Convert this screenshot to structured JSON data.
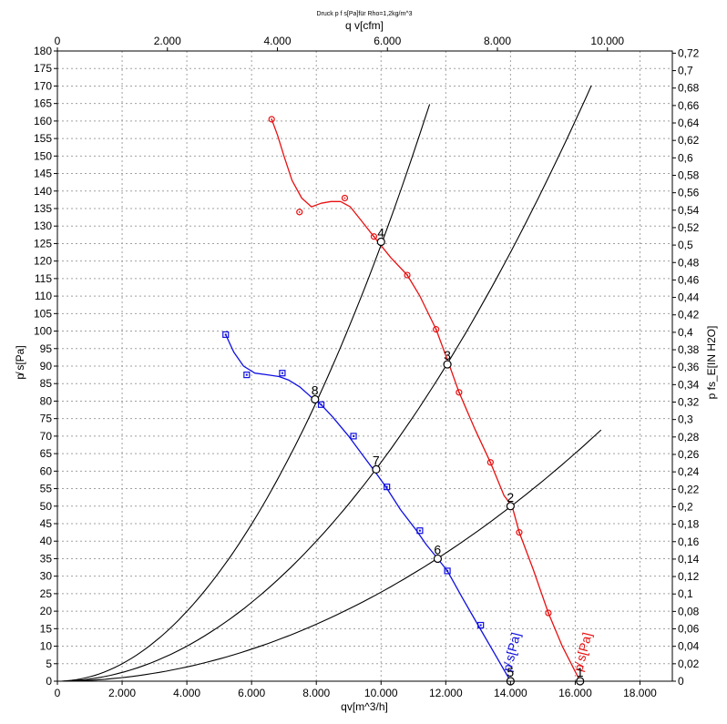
{
  "chart_data": {
    "type": "line",
    "title": "Druck p f s[Pa]für Rho=1,2kg/m^3",
    "xlabel": "qv[m^3/h]",
    "x2label": "q v[cfm]",
    "ylabel": "p̸ s[Pa]",
    "y2label": "p fs_E[IN H2O]",
    "xlim": [
      0,
      19000
    ],
    "ylim": [
      0,
      180
    ],
    "x2lim": [
      0,
      11180
    ],
    "y2lim": [
      0,
      0.7225
    ],
    "grid": true,
    "x_ticks": [
      0,
      2000,
      4000,
      6000,
      8000,
      10000,
      12000,
      14000,
      16000,
      18000
    ],
    "x_tick_labels": [
      "0",
      "2.000",
      "4.000",
      "6.000",
      "8.000",
      "10.000",
      "12.000",
      "14.000",
      "16.000",
      "18.000"
    ],
    "x2_ticks": [
      0,
      2000,
      4000,
      6000,
      8000,
      10000
    ],
    "x2_tick_labels": [
      "0",
      "2.000",
      "4.000",
      "6.000",
      "8.000",
      "10.000"
    ],
    "y_ticks": [
      0,
      5,
      10,
      15,
      20,
      25,
      30,
      35,
      40,
      45,
      50,
      55,
      60,
      65,
      70,
      75,
      80,
      85,
      90,
      95,
      100,
      105,
      110,
      115,
      120,
      125,
      130,
      135,
      140,
      145,
      150,
      155,
      160,
      165,
      170,
      175,
      180
    ],
    "y2_ticks": [
      0,
      0.02,
      0.04,
      0.06,
      0.08,
      0.1,
      0.12,
      0.14,
      0.16,
      0.18,
      0.2,
      0.22,
      0.24,
      0.26,
      0.28,
      0.3,
      0.32,
      0.34,
      0.36,
      0.38,
      0.4,
      0.42,
      0.44,
      0.46,
      0.48,
      0.5,
      0.52,
      0.54,
      0.56,
      0.58,
      0.6,
      0.62,
      0.64,
      0.66,
      0.68,
      0.7,
      0.72
    ],
    "y2_tick_labels": [
      "0",
      "0,02",
      "0,04",
      "0,06",
      "0,08",
      "0,1",
      "0,12",
      "0,14",
      "0,16",
      "0,18",
      "0,2",
      "0,22",
      "0,24",
      "0,26",
      "0,28",
      "0,3",
      "0,32",
      "0,34",
      "0,36",
      "0,38",
      "0,4",
      "0,42",
      "0,44",
      "0,46",
      "0,48",
      "0,5",
      "0,52",
      "0,54",
      "0,56",
      "0,58",
      "0,6",
      "0,62",
      "0,64",
      "0,66",
      "0,68",
      "0,7",
      "0,72"
    ],
    "series": [
      {
        "name": "p̸ s[Pa]",
        "color": "#e81010",
        "marker": "circle",
        "points": [
          [
            6620,
            160.5
          ],
          [
            7480,
            134
          ],
          [
            8880,
            138
          ],
          [
            9780,
            127
          ],
          [
            10810,
            116
          ],
          [
            11700,
            100.5
          ],
          [
            12410,
            82.5
          ],
          [
            13380,
            62.5
          ],
          [
            14270,
            42.5
          ],
          [
            15170,
            19.5
          ],
          [
            16150,
            0
          ]
        ],
        "curve": [
          [
            6620,
            160.5
          ],
          [
            6800,
            156
          ],
          [
            7000,
            150
          ],
          [
            7250,
            143
          ],
          [
            7550,
            138
          ],
          [
            7850,
            135.5
          ],
          [
            8150,
            136.5
          ],
          [
            8450,
            137
          ],
          [
            8750,
            137
          ],
          [
            9050,
            135.5
          ],
          [
            9350,
            132
          ],
          [
            9780,
            127
          ],
          [
            10300,
            121
          ],
          [
            10810,
            116
          ],
          [
            11200,
            110
          ],
          [
            11700,
            100.5
          ],
          [
            12100,
            90.5
          ],
          [
            12410,
            82.5
          ],
          [
            12900,
            72
          ],
          [
            13380,
            62.5
          ],
          [
            13800,
            53
          ],
          [
            14050,
            50
          ],
          [
            14270,
            42.5
          ],
          [
            14700,
            32
          ],
          [
            15170,
            19.5
          ],
          [
            15600,
            10
          ],
          [
            16150,
            0
          ]
        ],
        "markers": [
          [
            6620,
            160.5
          ],
          [
            7480,
            134
          ],
          [
            8880,
            138
          ],
          [
            9780,
            127
          ],
          [
            10810,
            116
          ],
          [
            11700,
            100.5
          ],
          [
            12410,
            82.5
          ],
          [
            13380,
            62.5
          ],
          [
            14270,
            42.5
          ],
          [
            15170,
            19.5
          ]
        ]
      },
      {
        "name": "p̸ s[Pa]",
        "color": "#1010e0",
        "marker": "square",
        "curve": [
          [
            5200,
            99
          ],
          [
            5450,
            94
          ],
          [
            5750,
            90
          ],
          [
            6100,
            88
          ],
          [
            6500,
            87.5
          ],
          [
            6850,
            87
          ],
          [
            7150,
            86
          ],
          [
            7500,
            84
          ],
          [
            7800,
            81.5
          ],
          [
            8000,
            80
          ],
          [
            8150,
            79
          ],
          [
            8500,
            75.5
          ],
          [
            9000,
            70
          ],
          [
            9400,
            65
          ],
          [
            9800,
            60
          ],
          [
            10150,
            55.5
          ],
          [
            10600,
            49
          ],
          [
            11100,
            43
          ],
          [
            11400,
            39
          ],
          [
            11750,
            35
          ],
          [
            12050,
            31.5
          ],
          [
            12500,
            24
          ],
          [
            13000,
            16
          ],
          [
            13500,
            8
          ],
          [
            14000,
            0
          ]
        ],
        "markers": [
          [
            5200,
            99
          ],
          [
            5850,
            87.5
          ],
          [
            6950,
            88
          ],
          [
            8150,
            79
          ],
          [
            9150,
            70
          ],
          [
            10180,
            55.5
          ],
          [
            11200,
            43
          ],
          [
            12050,
            31.5
          ],
          [
            13080,
            16
          ]
        ]
      }
    ],
    "system_curves": [
      {
        "color": "#000000",
        "k_per_1000_sq": 1.246,
        "x_end": 11500
      },
      {
        "color": "#000000",
        "k_per_1000_sq": 0.625,
        "x_end": 16500
      },
      {
        "color": "#000000",
        "k_per_1000_sq": 0.2543,
        "x_end": 16800
      }
    ],
    "operating_points": [
      {
        "label": "1",
        "x": 16150,
        "y": 0
      },
      {
        "label": "2",
        "x": 14000,
        "y": 50
      },
      {
        "label": "3",
        "x": 12050,
        "y": 90.5
      },
      {
        "label": "4",
        "x": 10000,
        "y": 125.5
      },
      {
        "label": "5",
        "x": 14000,
        "y": 0
      },
      {
        "label": "6",
        "x": 11750,
        "y": 35
      },
      {
        "label": "7",
        "x": 9850,
        "y": 60.5
      },
      {
        "label": "8",
        "x": 7960,
        "y": 80.5
      }
    ],
    "curve_labels": [
      {
        "text": "p̸ s[Pa]",
        "color": "#e81010",
        "x": 16100,
        "y": 2
      },
      {
        "text": "p̸ s[Pa]",
        "color": "#1010e0",
        "x": 13900,
        "y": 2
      }
    ]
  }
}
